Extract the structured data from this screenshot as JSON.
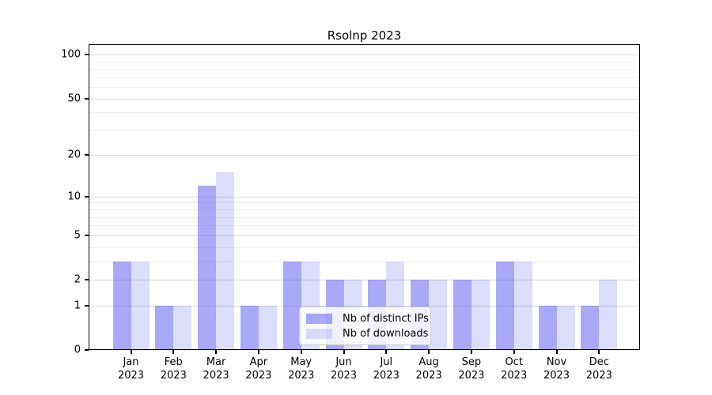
{
  "title": "Rsolnp 2023",
  "chart_data": {
    "type": "bar",
    "title": "Rsolnp 2023",
    "categories": [
      "Jan 2023",
      "Feb 2023",
      "Mar 2023",
      "Apr 2023",
      "May 2023",
      "Jun 2023",
      "Jul 2023",
      "Aug 2023",
      "Sep 2023",
      "Oct 2023",
      "Nov 2023",
      "Dec 2023"
    ],
    "series": [
      {
        "name": "Nb of distinct IPs",
        "color": "#aaaaf8",
        "rgba": "rgba(76,76,238,0.48)",
        "values": [
          3,
          1,
          12,
          1,
          3,
          2,
          2,
          2,
          2,
          3,
          1,
          1
        ]
      },
      {
        "name": "Nb of downloads",
        "color": "#dcdcfa",
        "rgba": "rgba(76,76,238,0.19)",
        "values": [
          3,
          1,
          15,
          1,
          3,
          2,
          3,
          2,
          2,
          3,
          1,
          2
        ]
      }
    ],
    "yscale": "log1p",
    "y_ticks": [
      0,
      1,
      2,
      5,
      10,
      20,
      50,
      100
    ],
    "y_minor_ticks": [
      3,
      4,
      6,
      7,
      8,
      9,
      30,
      40,
      60,
      70,
      80,
      90
    ],
    "ylim": [
      0,
      107
    ],
    "xlabel": "",
    "ylabel": "",
    "grid": "horizontal",
    "legend_position": "bottom-center"
  },
  "colors": {
    "background": "#ffffff",
    "axis": "#000000",
    "text": "#000000",
    "major_grid": "#d9d9d9",
    "minor_grid": "#f0f0f0",
    "legend_border": "#cccccc"
  }
}
